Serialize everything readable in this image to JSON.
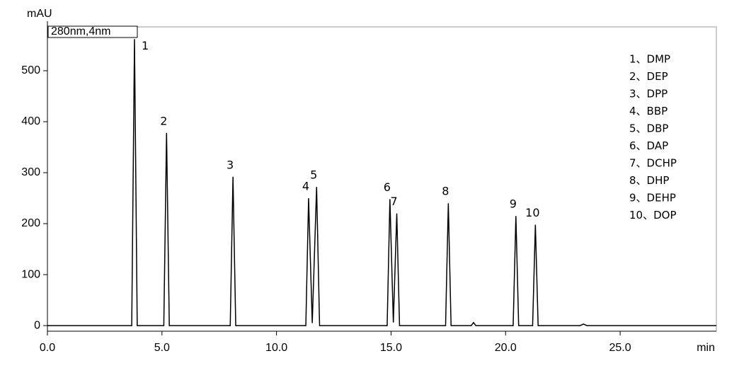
{
  "chart_data": {
    "type": "line",
    "y_axis_label": "mAU",
    "x_axis_label": "min",
    "detector_label": "280nm,4nm",
    "color": "#000000",
    "x": [
      0,
      3.68,
      3.8,
      3.92,
      5.08,
      5.2,
      5.32,
      7.98,
      8.1,
      8.22,
      11.28,
      11.4,
      11.56,
      11.75,
      11.88,
      14.83,
      14.95,
      15.1,
      15.25,
      15.37,
      17.38,
      17.5,
      17.62,
      18.5,
      18.6,
      18.7,
      20.33,
      20.45,
      20.57,
      21.18,
      21.3,
      21.42,
      23.25,
      23.4,
      23.55,
      29.2
    ],
    "values": [
      0,
      0,
      562,
      0,
      0,
      378,
      0,
      0,
      292,
      0,
      0,
      250,
      5,
      272,
      0,
      0,
      248,
      6,
      220,
      0,
      0,
      240,
      0,
      0,
      6,
      0,
      0,
      215,
      0,
      0,
      198,
      0,
      0,
      3,
      0,
      0
    ],
    "peak_labels": [
      "1",
      "2",
      "3",
      "4",
      "5",
      "6",
      "7",
      "8",
      "9",
      "10"
    ],
    "legend": [
      "1、DMP",
      "2、DEP",
      "3、DPP",
      "4、BBP",
      "5、DBP",
      "6、DAP",
      "7、DCHP",
      "8、DHP",
      "9、DEHP",
      "10、DOP"
    ],
    "xlim": [
      0,
      29.2
    ],
    "ylim": [
      -11,
      586
    ],
    "xticks": [
      {
        "value": 0,
        "label": "0.0"
      },
      {
        "value": 5,
        "label": "5.0"
      },
      {
        "value": 10,
        "label": "10.0"
      },
      {
        "value": 15,
        "label": "15.0"
      },
      {
        "value": 20,
        "label": "20.0"
      },
      {
        "value": 25,
        "label": "25.0"
      }
    ],
    "yticks": [
      0,
      100,
      200,
      300,
      400,
      500
    ]
  }
}
